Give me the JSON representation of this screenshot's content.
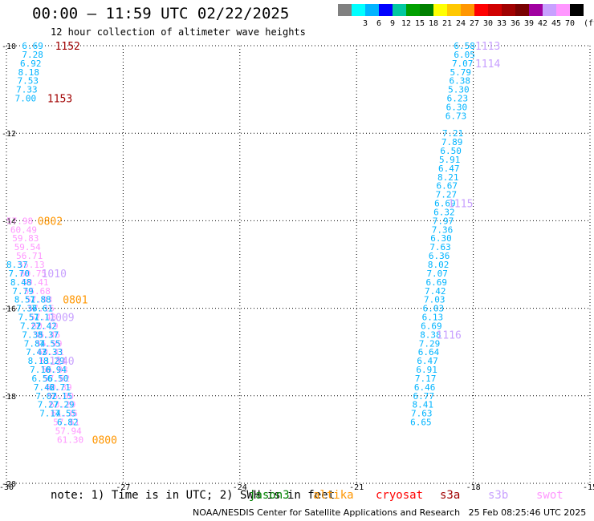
{
  "header": {
    "title": "00:00 – 11:59 UTC 02/22/2025",
    "subtitle": "12 hour collection of altimeter wave heights"
  },
  "colorbar": {
    "colors": [
      "#808080",
      "#00ffff",
      "#00b4ff",
      "#0000ff",
      "#00c8a0",
      "#00a000",
      "#008000",
      "#ffff00",
      "#ffc800",
      "#ff9600",
      "#ff0000",
      "#d00000",
      "#a00000",
      "#780000",
      "#a000a0",
      "#c8a0ff",
      "#ff96ff",
      "#000000"
    ],
    "labels": [
      "3",
      "6",
      "9",
      "12",
      "15",
      "18",
      "21",
      "24",
      "27",
      "30",
      "33",
      "36",
      "39",
      "42",
      "45",
      "70"
    ],
    "unit": "(ft)"
  },
  "footer": {
    "note": "note: 1) Time is in UTC; 2) SWH is in feet",
    "credit": "NOAA/NESDIS Center for Satellite Applications and Research   25 Feb 08:25:46 UTC 2025",
    "satellites": [
      {
        "name": "jason3",
        "color": "#008000"
      },
      {
        "name": "altika",
        "color": "#ff9600"
      },
      {
        "name": "cryosat",
        "color": "#ff0000"
      },
      {
        "name": "s3a",
        "color": "#a00000"
      },
      {
        "name": "s3b",
        "color": "#c8a0ff"
      },
      {
        "name": "swot",
        "color": "#ff96ff"
      }
    ]
  },
  "chart_data": {
    "type": "scatter",
    "title": "",
    "xlabel": "",
    "ylabel": "",
    "xlim": [
      -30,
      -15
    ],
    "ylim": [
      -20,
      -10
    ],
    "x_ticks": [
      "-30",
      "-27",
      "-24",
      "-21",
      "-18",
      "-15"
    ],
    "y_ticks": [
      "-10",
      "-12",
      "-14",
      "-16",
      "-18",
      "-20"
    ],
    "grid": true,
    "series": [
      {
        "name": "track_east",
        "color": "#00b4ff",
        "points": [
          {
            "x": -18.5,
            "y": -10.0,
            "v": "6.58"
          },
          {
            "x": -18.5,
            "y": -10.2,
            "v": "6.05"
          },
          {
            "x": -18.55,
            "y": -10.4,
            "v": "7.07"
          },
          {
            "x": -18.6,
            "y": -10.6,
            "v": "5.79"
          },
          {
            "x": -18.62,
            "y": -10.8,
            "v": "6.38"
          },
          {
            "x": -18.65,
            "y": -11.0,
            "v": "5.30"
          },
          {
            "x": -18.68,
            "y": -11.2,
            "v": "6.23"
          },
          {
            "x": -18.7,
            "y": -11.4,
            "v": "6.30"
          },
          {
            "x": -18.72,
            "y": -11.6,
            "v": "6.73"
          },
          {
            "x": -18.8,
            "y": -12.0,
            "v": "7.21"
          },
          {
            "x": -18.82,
            "y": -12.2,
            "v": "7.89"
          },
          {
            "x": -18.85,
            "y": -12.4,
            "v": "6.50"
          },
          {
            "x": -18.88,
            "y": -12.6,
            "v": "5.91"
          },
          {
            "x": -18.9,
            "y": -12.8,
            "v": "6.47"
          },
          {
            "x": -18.92,
            "y": -13.0,
            "v": "8.21"
          },
          {
            "x": -18.95,
            "y": -13.2,
            "v": "6.67"
          },
          {
            "x": -18.97,
            "y": -13.4,
            "v": "7.27"
          },
          {
            "x": -19.0,
            "y": -13.6,
            "v": "6.69"
          },
          {
            "x": -19.02,
            "y": -13.8,
            "v": "6.32"
          },
          {
            "x": -19.05,
            "y": -14.0,
            "v": "7.97"
          },
          {
            "x": -19.07,
            "y": -14.2,
            "v": "7.36"
          },
          {
            "x": -19.1,
            "y": -14.4,
            "v": "6.30"
          },
          {
            "x": -19.12,
            "y": -14.6,
            "v": "7.63"
          },
          {
            "x": -19.15,
            "y": -14.8,
            "v": "6.36"
          },
          {
            "x": -19.17,
            "y": -15.0,
            "v": "8.02"
          },
          {
            "x": -19.2,
            "y": -15.2,
            "v": "7.07"
          },
          {
            "x": -19.22,
            "y": -15.4,
            "v": "6.69"
          },
          {
            "x": -19.25,
            "y": -15.6,
            "v": "7.42"
          },
          {
            "x": -19.27,
            "y": -15.8,
            "v": "7.03"
          },
          {
            "x": -19.3,
            "y": -16.0,
            "v": "6.03"
          },
          {
            "x": -19.32,
            "y": -16.2,
            "v": "6.13"
          },
          {
            "x": -19.35,
            "y": -16.4,
            "v": "6.69"
          },
          {
            "x": -19.37,
            "y": -16.6,
            "v": "8.38"
          },
          {
            "x": -19.4,
            "y": -16.8,
            "v": "7.29"
          },
          {
            "x": -19.42,
            "y": -17.0,
            "v": "6.64"
          },
          {
            "x": -19.45,
            "y": -17.2,
            "v": "6.47"
          },
          {
            "x": -19.47,
            "y": -17.4,
            "v": "6.91"
          },
          {
            "x": -19.5,
            "y": -17.6,
            "v": "7.17"
          },
          {
            "x": -19.52,
            "y": -17.8,
            "v": "6.46"
          },
          {
            "x": -19.55,
            "y": -18.0,
            "v": "6.77"
          },
          {
            "x": -19.57,
            "y": -18.2,
            "v": "8.41"
          },
          {
            "x": -19.6,
            "y": -18.4,
            "v": "7.63"
          },
          {
            "x": -19.62,
            "y": -18.6,
            "v": "6.65"
          }
        ]
      },
      {
        "name": "track_west_top",
        "color": "#00b4ff",
        "points": [
          {
            "x": -29.6,
            "y": -10.0,
            "v": "6.69"
          },
          {
            "x": -29.6,
            "y": -10.2,
            "v": "7.28"
          },
          {
            "x": -29.65,
            "y": -10.4,
            "v": "6.92"
          },
          {
            "x": -29.7,
            "y": -10.6,
            "v": "8.18"
          },
          {
            "x": -29.72,
            "y": -10.8,
            "v": "7.53"
          },
          {
            "x": -29.75,
            "y": -11.0,
            "v": "7.33"
          },
          {
            "x": -29.78,
            "y": -11.2,
            "v": "7.00"
          }
        ]
      },
      {
        "name": "track_west_swot",
        "color": "#ff96ff",
        "points": [
          {
            "x": -30.0,
            "y": -14.0,
            "v": "57.98"
          },
          {
            "x": -29.9,
            "y": -14.2,
            "v": "60.49"
          },
          {
            "x": -29.85,
            "y": -14.4,
            "v": "59.83"
          },
          {
            "x": -29.8,
            "y": -14.6,
            "v": "59.54"
          },
          {
            "x": -29.75,
            "y": -14.8,
            "v": "56.71"
          },
          {
            "x": -29.7,
            "y": -15.0,
            "v": "55.13"
          },
          {
            "x": -29.65,
            "y": -15.2,
            "v": "60.75"
          },
          {
            "x": -29.6,
            "y": -15.4,
            "v": "59.41"
          },
          {
            "x": -29.55,
            "y": -15.6,
            "v": "55.68"
          },
          {
            "x": -29.5,
            "y": -15.8,
            "v": "57.93"
          },
          {
            "x": -29.45,
            "y": -16.0,
            "v": "57.16"
          },
          {
            "x": -29.4,
            "y": -16.2,
            "v": "57.48"
          },
          {
            "x": -29.35,
            "y": -16.4,
            "v": "60.19"
          },
          {
            "x": -29.3,
            "y": -16.6,
            "v": "56.46"
          },
          {
            "x": -29.25,
            "y": -16.8,
            "v": "55.99"
          },
          {
            "x": -29.2,
            "y": -17.0,
            "v": "60.41"
          },
          {
            "x": -29.15,
            "y": -17.2,
            "v": "61.83"
          },
          {
            "x": -29.1,
            "y": -17.4,
            "v": "56.03"
          },
          {
            "x": -29.05,
            "y": -17.6,
            "v": "57.62"
          },
          {
            "x": -29.0,
            "y": -17.8,
            "v": "60.39"
          },
          {
            "x": -28.95,
            "y": -18.0,
            "v": "56.00"
          },
          {
            "x": -28.9,
            "y": -18.2,
            "v": "63.29"
          },
          {
            "x": -28.85,
            "y": -18.4,
            "v": "61.36"
          },
          {
            "x": -28.8,
            "y": -18.6,
            "v": "57.61"
          },
          {
            "x": -28.75,
            "y": -18.8,
            "v": "57.94"
          },
          {
            "x": -28.7,
            "y": -19.0,
            "v": "61.30"
          }
        ]
      },
      {
        "name": "track_west_a",
        "color": "#00b4ff",
        "points": [
          {
            "x": -30.0,
            "y": -15.0,
            "v": "8.37"
          },
          {
            "x": -29.95,
            "y": -15.2,
            "v": "7.70"
          },
          {
            "x": -29.9,
            "y": -15.4,
            "v": "8.48"
          },
          {
            "x": -29.85,
            "y": -15.6,
            "v": "7.79"
          },
          {
            "x": -29.8,
            "y": -15.8,
            "v": "8.51"
          },
          {
            "x": -29.75,
            "y": -16.0,
            "v": "7.36"
          },
          {
            "x": -29.7,
            "y": -16.2,
            "v": "7.51"
          },
          {
            "x": -29.65,
            "y": -16.4,
            "v": "7.22"
          },
          {
            "x": -29.6,
            "y": -16.6,
            "v": "7.35"
          },
          {
            "x": -29.55,
            "y": -16.8,
            "v": "7.84"
          },
          {
            "x": -29.5,
            "y": -17.0,
            "v": "7.43"
          },
          {
            "x": -29.45,
            "y": -17.2,
            "v": "8.13"
          },
          {
            "x": -29.4,
            "y": -17.4,
            "v": "7.10"
          },
          {
            "x": -29.35,
            "y": -17.6,
            "v": "6.56"
          },
          {
            "x": -29.3,
            "y": -17.8,
            "v": "7.42"
          },
          {
            "x": -29.25,
            "y": -18.0,
            "v": "7.02"
          },
          {
            "x": -29.2,
            "y": -18.2,
            "v": "7.27"
          },
          {
            "x": -29.15,
            "y": -18.4,
            "v": "7.14"
          }
        ]
      },
      {
        "name": "track_west_b",
        "color": "#00b4ff",
        "points": [
          {
            "x": -29.4,
            "y": -15.8,
            "v": "7.88"
          },
          {
            "x": -29.35,
            "y": -16.0,
            "v": "7.61"
          },
          {
            "x": -29.3,
            "y": -16.2,
            "v": "7.11"
          },
          {
            "x": -29.25,
            "y": -16.4,
            "v": "7.42"
          },
          {
            "x": -29.2,
            "y": -16.6,
            "v": "8.37"
          },
          {
            "x": -29.15,
            "y": -16.8,
            "v": "7.55"
          },
          {
            "x": -29.1,
            "y": -17.0,
            "v": "7.33"
          },
          {
            "x": -29.05,
            "y": -17.2,
            "v": "8.29"
          },
          {
            "x": -29.0,
            "y": -17.4,
            "v": "6.94"
          },
          {
            "x": -28.95,
            "y": -17.6,
            "v": "6.50"
          },
          {
            "x": -28.9,
            "y": -17.8,
            "v": "6.71"
          },
          {
            "x": -28.85,
            "y": -18.0,
            "v": "7.15"
          },
          {
            "x": -28.8,
            "y": -18.2,
            "v": "7.29"
          },
          {
            "x": -28.75,
            "y": -18.4,
            "v": "7.55"
          },
          {
            "x": -28.7,
            "y": -18.6,
            "v": "6.82"
          }
        ]
      }
    ],
    "annotations": [
      {
        "text": "1152",
        "x": -28.75,
        "y": -10.0,
        "color": "#a00000"
      },
      {
        "text": "1153",
        "x": -28.95,
        "y": -11.2,
        "color": "#a00000"
      },
      {
        "text": "1113",
        "x": -17.95,
        "y": -10.0,
        "color": "#c8a0ff"
      },
      {
        "text": "1114",
        "x": -17.95,
        "y": -10.4,
        "color": "#c8a0ff"
      },
      {
        "text": "1115",
        "x": -18.65,
        "y": -13.6,
        "color": "#c8a0ff"
      },
      {
        "text": "1116",
        "x": -18.95,
        "y": -16.6,
        "color": "#c8a0ff"
      },
      {
        "text": "0802",
        "x": -29.2,
        "y": -14.0,
        "color": "#ff9600"
      },
      {
        "text": "0801",
        "x": -28.55,
        "y": -15.8,
        "color": "#ff9600"
      },
      {
        "text": "0800",
        "x": -27.8,
        "y": -19.0,
        "color": "#ff9600"
      },
      {
        "text": "1010",
        "x": -29.1,
        "y": -15.2,
        "color": "#c8a0ff"
      },
      {
        "text": "1009",
        "x": -28.9,
        "y": -16.2,
        "color": "#c8a0ff"
      },
      {
        "text": "1140",
        "x": -28.9,
        "y": -17.2,
        "color": "#c8a0ff"
      }
    ]
  }
}
